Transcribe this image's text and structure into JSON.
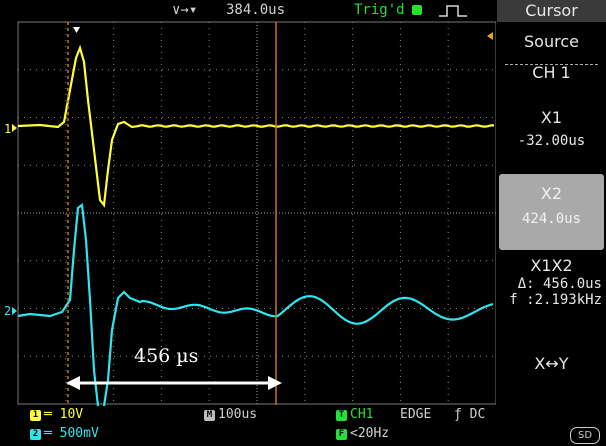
{
  "top_bar": {
    "timebase_position": "384.0us",
    "trigger_status": "Trig'd",
    "trigger_icon": "rising-edge-icon",
    "position_icon": "position-marker-icon"
  },
  "channels": [
    {
      "marker": "1",
      "color": "#ffff35"
    },
    {
      "marker": "2",
      "color": "#2ee6f0"
    }
  ],
  "menu": {
    "title": "Cursor",
    "items": [
      {
        "label": "Source",
        "value": "CH 1"
      },
      {
        "label": "X1",
        "value": "-32.00us"
      },
      {
        "label": "X2",
        "value": "424.0us",
        "selected": true
      },
      {
        "label": "X1X2",
        "delta": "Δ: 456.0us",
        "freq": "f :2.193kHz"
      },
      {
        "label": "X↔Y"
      }
    ]
  },
  "bottom": {
    "ch1_badge": "1",
    "ch1_scale": "═ 10V",
    "ch2_badge": "2",
    "ch2_scale": "═ 500mV",
    "timebase_badge": "M",
    "timebase": "100us",
    "trig_badge": "T",
    "trigger_source": "CH1",
    "trigger_type": "EDGE",
    "trigger_coupling": "ƒ DC",
    "freq_badge": "F",
    "frequency": "<20Hz",
    "sd_badge": "SD"
  },
  "annotation": {
    "label": "456 µs"
  }
}
